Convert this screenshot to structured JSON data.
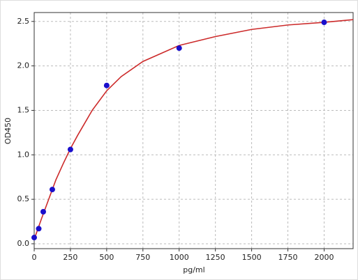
{
  "chart_data": {
    "type": "scatter",
    "x_label": "pg/ml",
    "y_label": "OD450",
    "xlim": [
      0,
      2200
    ],
    "ylim": [
      -0.055,
      2.6
    ],
    "xticks": [
      0,
      250,
      500,
      750,
      1000,
      1250,
      1500,
      1750,
      2000
    ],
    "yticks": [
      {
        "value": 0,
        "label": "0.0"
      },
      0.5,
      {
        "value": 1,
        "label": "1.0"
      },
      1.5,
      {
        "value": 2,
        "label": "2.0"
      },
      2.5
    ],
    "grid": true,
    "series": [
      {
        "type": "line",
        "color": "#cc2a2a",
        "x": [
          0,
          50,
          100,
          150,
          200,
          250,
          300,
          400,
          500,
          600,
          750,
          1000,
          1250,
          1500,
          1750,
          2000,
          2200
        ],
        "values": [
          0.05,
          0.28,
          0.5,
          0.72,
          0.9,
          1.07,
          1.22,
          1.5,
          1.72,
          1.88,
          2.05,
          2.23,
          2.33,
          2.41,
          2.46,
          2.49,
          2.52
        ]
      },
      {
        "type": "scatter",
        "color": "#1a0fcc",
        "x": [
          0,
          31.25,
          62.5,
          125,
          250,
          500,
          1000,
          2000
        ],
        "values": [
          0.07,
          0.17,
          0.36,
          0.61,
          1.06,
          1.78,
          2.2,
          2.49
        ]
      }
    ]
  }
}
